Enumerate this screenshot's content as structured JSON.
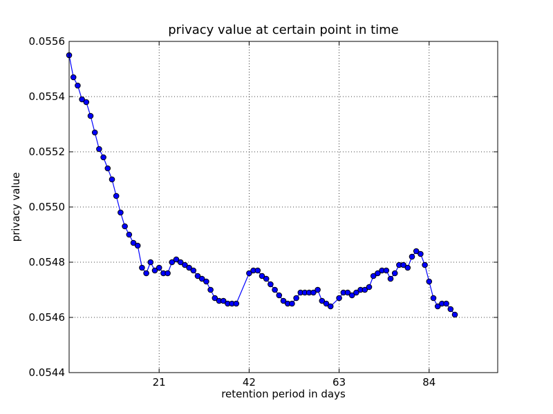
{
  "chart_data": {
    "type": "line",
    "title": "privacy value at certain point in time",
    "xlabel": "retention period in days",
    "ylabel": "privacy value",
    "xlim": [
      0,
      100
    ],
    "ylim": [
      0.0544,
      0.0556
    ],
    "xticks": [
      21,
      42,
      63,
      84
    ],
    "xtick_labels": [
      "21",
      "42",
      "63",
      "84"
    ],
    "yticks": [
      0.0544,
      0.0546,
      0.0548,
      0.055,
      0.0552,
      0.0554,
      0.0556
    ],
    "ytick_labels": [
      "0.0544",
      "0.0546",
      "0.0548",
      "0.0550",
      "0.0552",
      "0.0554",
      "0.0556"
    ],
    "grid": true,
    "colors": {
      "line": "#0000ff",
      "marker_fill": "#0000ff",
      "marker_edge": "#000000"
    },
    "series": [
      {
        "x": [
          0,
          1,
          2,
          3,
          4,
          5,
          6,
          7,
          8,
          9,
          10,
          11,
          12,
          13,
          14,
          15,
          16,
          17,
          18,
          19,
          20,
          21,
          22,
          23,
          24,
          25,
          26,
          27,
          28,
          29,
          30,
          31,
          32,
          33,
          34,
          35,
          36,
          37,
          38,
          39,
          42,
          43,
          44,
          45,
          46,
          47,
          48,
          49,
          50,
          51,
          52,
          53,
          54,
          55,
          56,
          57,
          58,
          59,
          60,
          61,
          63,
          64,
          65,
          66,
          67,
          68,
          69,
          70,
          71,
          72,
          73,
          74,
          75,
          76,
          77,
          78,
          79,
          80,
          81,
          82,
          83,
          84,
          85,
          86,
          87,
          88,
          89,
          90
        ],
        "y": [
          0.05555,
          0.05547,
          0.05544,
          0.05539,
          0.05538,
          0.05533,
          0.05527,
          0.05521,
          0.05518,
          0.05514,
          0.0551,
          0.05504,
          0.05498,
          0.05493,
          0.0549,
          0.05487,
          0.05486,
          0.05478,
          0.05476,
          0.0548,
          0.05477,
          0.05478,
          0.05476,
          0.05476,
          0.0548,
          0.05481,
          0.0548,
          0.05479,
          0.05478,
          0.05477,
          0.05475,
          0.05474,
          0.05473,
          0.0547,
          0.05467,
          0.05466,
          0.05466,
          0.05465,
          0.05465,
          0.05465,
          0.05476,
          0.05477,
          0.05477,
          0.05475,
          0.05474,
          0.05472,
          0.0547,
          0.05468,
          0.05466,
          0.05465,
          0.05465,
          0.05467,
          0.05469,
          0.05469,
          0.05469,
          0.05469,
          0.0547,
          0.05466,
          0.05465,
          0.05464,
          0.05467,
          0.05469,
          0.05469,
          0.05468,
          0.05469,
          0.0547,
          0.0547,
          0.05471,
          0.05475,
          0.05476,
          0.05477,
          0.05477,
          0.05474,
          0.05476,
          0.05479,
          0.05479,
          0.05478,
          0.05482,
          0.05484,
          0.05483,
          0.05479,
          0.05473,
          0.05467,
          0.05464,
          0.05465,
          0.05465,
          0.05463,
          0.05461
        ]
      }
    ]
  }
}
